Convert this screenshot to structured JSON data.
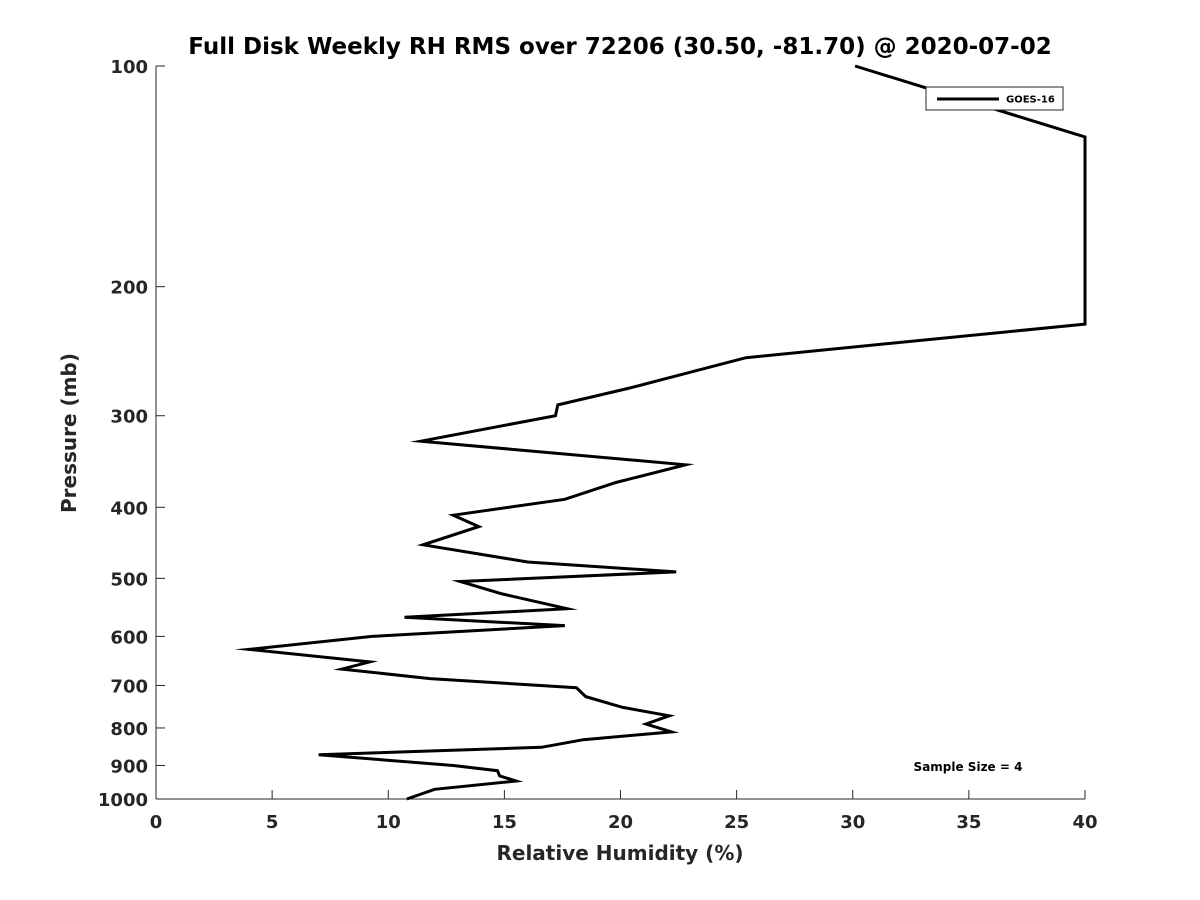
{
  "chart_data": {
    "type": "line",
    "title": "Full Disk Weekly RH RMS over 72206 (30.50, -81.70) @ 2020-07-02",
    "xlabel": "Relative Humidity (%)",
    "ylabel": "Pressure (mb)",
    "xlim": [
      0,
      40
    ],
    "ylim": [
      100,
      1000
    ],
    "y_scale": "log",
    "y_reversed": true,
    "x_ticks": [
      0,
      5,
      10,
      15,
      20,
      25,
      30,
      35,
      40
    ],
    "y_ticks": [
      100,
      200,
      300,
      400,
      500,
      600,
      700,
      800,
      900,
      1000
    ],
    "grid": false,
    "legend_position": "top-right",
    "series": [
      {
        "name": "GOES-16",
        "color": "#000000",
        "points": [
          [
            30.1,
            100
          ],
          [
            40.0,
            125
          ],
          [
            40.0,
            225
          ],
          [
            25.4,
            250
          ],
          [
            20.4,
            275
          ],
          [
            17.3,
            290
          ],
          [
            17.2,
            300
          ],
          [
            11.4,
            325
          ],
          [
            22.8,
            350
          ],
          [
            19.8,
            370
          ],
          [
            17.6,
            390
          ],
          [
            12.8,
            410
          ],
          [
            13.9,
            425
          ],
          [
            11.5,
            450
          ],
          [
            16.0,
            475
          ],
          [
            22.4,
            490
          ],
          [
            13.1,
            505
          ],
          [
            14.9,
            525
          ],
          [
            17.7,
            550
          ],
          [
            10.7,
            565
          ],
          [
            17.6,
            580
          ],
          [
            9.3,
            600
          ],
          [
            4.0,
            625
          ],
          [
            9.2,
            650
          ],
          [
            8.0,
            665
          ],
          [
            11.8,
            685
          ],
          [
            18.1,
            705
          ],
          [
            18.5,
            725
          ],
          [
            20.1,
            750
          ],
          [
            22.1,
            770
          ],
          [
            21.1,
            790
          ],
          [
            22.2,
            810
          ],
          [
            18.4,
            830
          ],
          [
            16.6,
            850
          ],
          [
            7.0,
            870
          ],
          [
            12.8,
            900
          ],
          [
            14.7,
            915
          ],
          [
            14.8,
            930
          ],
          [
            15.5,
            945
          ],
          [
            12.0,
            970
          ],
          [
            10.8,
            1000
          ]
        ]
      }
    ],
    "annotations": [
      "Sample Size = 4"
    ]
  }
}
